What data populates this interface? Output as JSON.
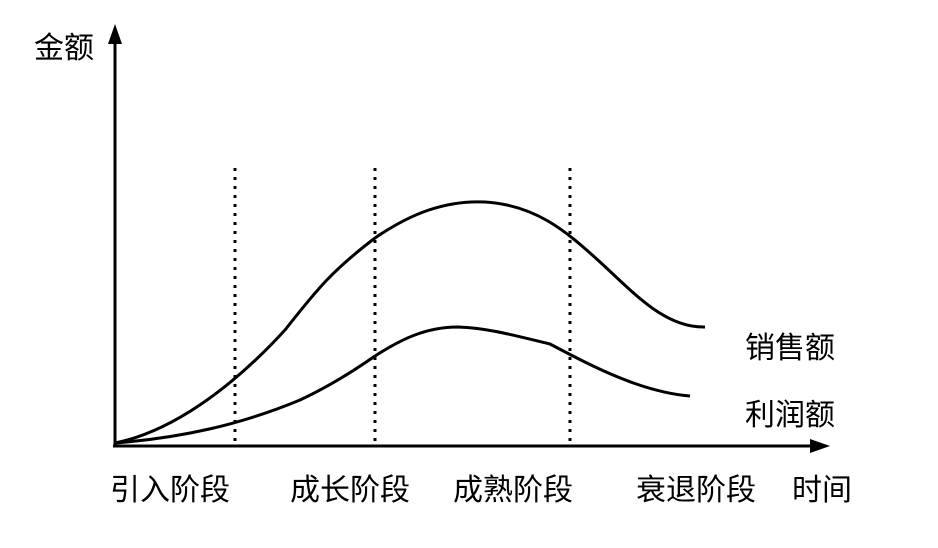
{
  "chart_data": {
    "type": "line",
    "ylabel": "金额",
    "xlabel": "时间",
    "stages": [
      "引入阶段",
      "成长阶段",
      "成熟阶段",
      "衰退阶段"
    ],
    "series": [
      {
        "name": "销售额"
      },
      {
        "name": "利润额"
      }
    ]
  }
}
